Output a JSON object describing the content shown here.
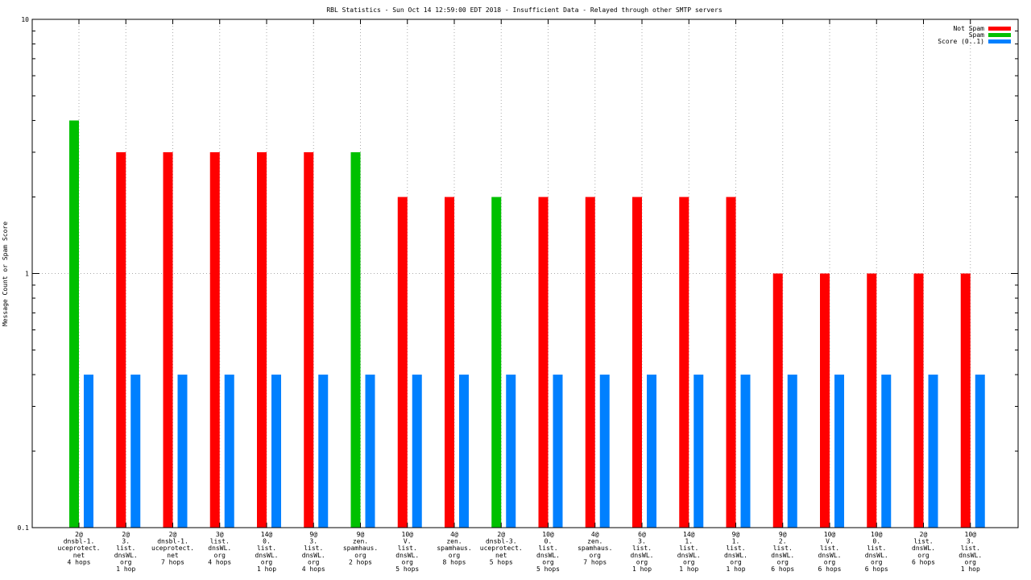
{
  "chart_data": {
    "type": "bar",
    "title": "RBL Statistics - Sun Oct 14 12:59:00 EDT 2018 - Insufficient Data - Relayed through other SMTP servers",
    "xlabel": "",
    "ylabel": "Message Count or Spam Score",
    "yscale": "log",
    "ylim": [
      0.1,
      10
    ],
    "yticks": [
      "0.1",
      "1",
      "10"
    ],
    "grid": true,
    "legend_position": "top-right",
    "categories": [
      [
        "2@",
        "dnsbl-1.",
        "uceprotect.",
        "net",
        "4 hops"
      ],
      [
        "2@",
        "3.",
        "list.",
        "dnsWL.",
        "org",
        "1 hop"
      ],
      [
        "2@",
        "dnsbl-1.",
        "uceprotect.",
        "net",
        "7 hops"
      ],
      [
        "3@",
        "list.",
        "dnsWL.",
        "org",
        "4 hops"
      ],
      [
        "14@",
        "0.",
        "list.",
        "dnsWL.",
        "org",
        "1 hop"
      ],
      [
        "9@",
        "3.",
        "list.",
        "dnsWL.",
        "org",
        "4 hops"
      ],
      [
        "9@",
        "zen.",
        "spamhaus.",
        "org",
        "2 hops"
      ],
      [
        "10@",
        "V.",
        "list.",
        "dnsWL.",
        "org",
        "5 hops"
      ],
      [
        "4@",
        "zen.",
        "spamhaus.",
        "org",
        "8 hops"
      ],
      [
        "2@",
        "dnsbl-3.",
        "uceprotect.",
        "net",
        "5 hops"
      ],
      [
        "10@",
        "0.",
        "list.",
        "dnsWL.",
        "org",
        "5 hops"
      ],
      [
        "4@",
        "zen.",
        "spamhaus.",
        "org",
        "7 hops"
      ],
      [
        "6@",
        "3.",
        "list.",
        "dnsWL.",
        "org",
        "1 hop"
      ],
      [
        "14@",
        "1.",
        "list.",
        "dnsWL.",
        "org",
        "1 hop"
      ],
      [
        "9@",
        "1.",
        "list.",
        "dnsWL.",
        "org",
        "1 hop"
      ],
      [
        "9@",
        "2.",
        "list.",
        "dnsWL.",
        "org",
        "6 hops"
      ],
      [
        "10@",
        "V.",
        "list.",
        "dnsWL.",
        "org",
        "6 hops"
      ],
      [
        "10@",
        "0.",
        "list.",
        "dnsWL.",
        "org",
        "6 hops"
      ],
      [
        "2@",
        "list.",
        "dnsWL.",
        "org",
        "6 hops"
      ],
      [
        "10@",
        "3.",
        "list.",
        "dnsWL.",
        "org",
        "1 hop"
      ]
    ],
    "series": [
      {
        "name": "Not Spam",
        "color": "#ff0000",
        "values": [
          null,
          3,
          3,
          3,
          3,
          3,
          null,
          2,
          2,
          null,
          2,
          2,
          2,
          2,
          2,
          1,
          1,
          1,
          1,
          1
        ]
      },
      {
        "name": "Spam",
        "color": "#00c000",
        "values": [
          4,
          null,
          null,
          null,
          null,
          null,
          3,
          null,
          null,
          2,
          null,
          null,
          null,
          null,
          null,
          null,
          null,
          null,
          null,
          null
        ]
      },
      {
        "name": "Score (0..1)",
        "color": "#0080ff",
        "values": [
          0.4,
          0.4,
          0.4,
          0.4,
          0.4,
          0.4,
          0.4,
          0.4,
          0.4,
          0.4,
          0.4,
          0.4,
          0.4,
          0.4,
          0.4,
          0.4,
          0.4,
          0.4,
          0.4,
          0.4
        ]
      }
    ]
  }
}
